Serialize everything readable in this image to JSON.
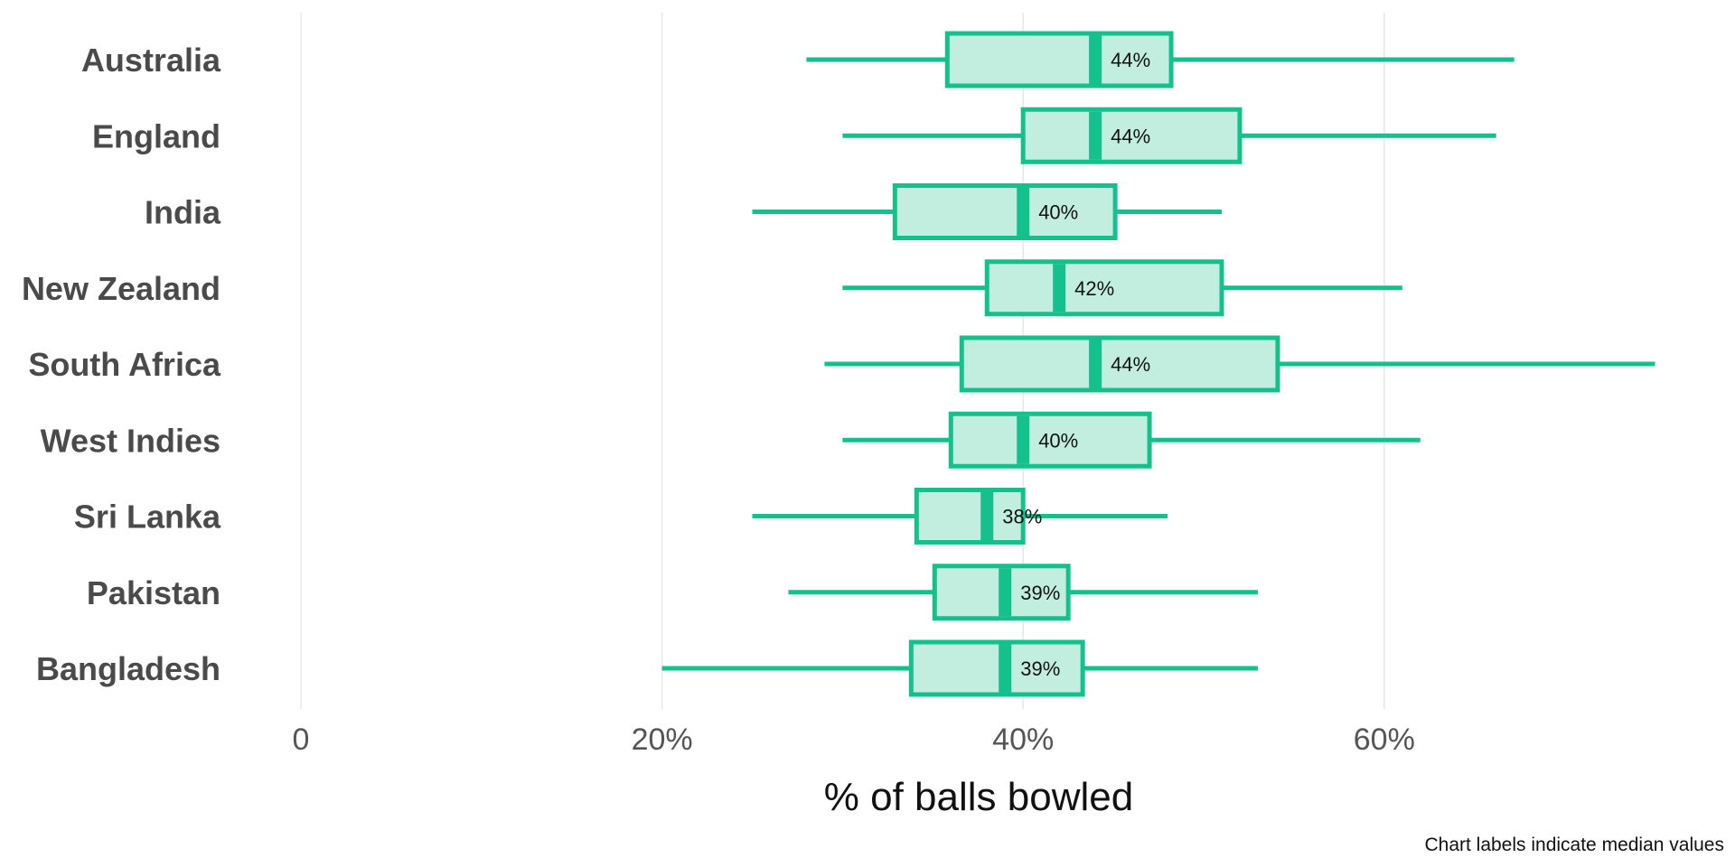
{
  "chart_data": {
    "type": "boxplot",
    "orientation": "horizontal",
    "categories": [
      "Australia",
      "England",
      "India",
      "New Zealand",
      "South Africa",
      "West Indies",
      "Sri Lanka",
      "Pakistan",
      "Bangladesh"
    ],
    "boxes": [
      {
        "category": "Australia",
        "whisker_low": 28,
        "q1": 35.8,
        "median": 44,
        "q3": 48.2,
        "whisker_high": 67.2,
        "label": "44%"
      },
      {
        "category": "England",
        "whisker_low": 30,
        "q1": 40.0,
        "median": 44,
        "q3": 52.0,
        "whisker_high": 66.2,
        "label": "44%"
      },
      {
        "category": "India",
        "whisker_low": 25,
        "q1": 32.9,
        "median": 40,
        "q3": 45.1,
        "whisker_high": 51.0,
        "label": "40%"
      },
      {
        "category": "New Zealand",
        "whisker_low": 30,
        "q1": 38.0,
        "median": 42,
        "q3": 51.0,
        "whisker_high": 61.0,
        "label": "42%"
      },
      {
        "category": "South Africa",
        "whisker_low": 29,
        "q1": 36.6,
        "median": 44,
        "q3": 54.1,
        "whisker_high": 75.0,
        "label": "44%"
      },
      {
        "category": "West Indies",
        "whisker_low": 30,
        "q1": 36.0,
        "median": 40,
        "q3": 47.0,
        "whisker_high": 62.0,
        "label": "40%"
      },
      {
        "category": "Sri Lanka",
        "whisker_low": 25,
        "q1": 34.1,
        "median": 38,
        "q3": 40.0,
        "whisker_high": 48.0,
        "label": "38%"
      },
      {
        "category": "Pakistan",
        "whisker_low": 27,
        "q1": 35.1,
        "median": 39,
        "q3": 42.5,
        "whisker_high": 53.0,
        "label": "39%"
      },
      {
        "category": "Bangladesh",
        "whisker_low": 20,
        "q1": 33.8,
        "median": 39,
        "q3": 43.3,
        "whisker_high": 53.0,
        "label": "39%"
      }
    ],
    "x_ticks": [
      {
        "value": 0,
        "label": "0"
      },
      {
        "value": 20,
        "label": "20%"
      },
      {
        "value": 40,
        "label": "40%"
      },
      {
        "value": 60,
        "label": "60%"
      }
    ],
    "xlabel": "% of balls bowled",
    "xlim": [
      0,
      75
    ],
    "grid": "vertical major",
    "legend": "none",
    "caption": "Chart labels indicate median values",
    "colors": {
      "box_fill": "#c2eee0",
      "box_stroke": "#14c08c",
      "median": "#14c08c",
      "category_text": "#4a4a4a",
      "gridline": "#e4e4e4"
    }
  }
}
